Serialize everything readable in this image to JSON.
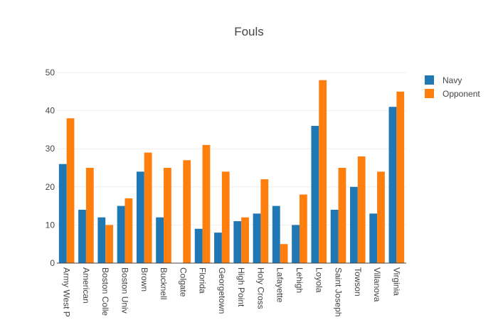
{
  "chart_data": {
    "type": "bar",
    "title": "Fouls",
    "xlabel": "",
    "ylabel": "",
    "ylim": [
      0,
      50
    ],
    "yticks": [
      0,
      10,
      20,
      30,
      40,
      50
    ],
    "grid": true,
    "legend_position": "top-right",
    "categories": [
      "Army West P",
      "American",
      "Boston Colle",
      "Boston Univ",
      "Brown",
      "Bucknell",
      "Colgate",
      "Florida",
      "Georgetown",
      "High Point",
      "Holy Cross",
      "Lafayette",
      "Lehigh",
      "Loyola",
      "Saint Joseph",
      "Towson",
      "Villanova",
      "Virginia"
    ],
    "series": [
      {
        "name": "Navy",
        "color": "#1f77b4",
        "values": [
          26,
          14,
          12,
          15,
          24,
          12,
          0,
          9,
          8,
          11,
          13,
          15,
          10,
          36,
          14,
          20,
          13,
          41
        ]
      },
      {
        "name": "Opponent",
        "color": "#ff7f0e",
        "values": [
          38,
          25,
          10,
          17,
          29,
          25,
          27,
          31,
          24,
          12,
          22,
          5,
          18,
          48,
          25,
          28,
          24,
          45
        ]
      }
    ]
  }
}
